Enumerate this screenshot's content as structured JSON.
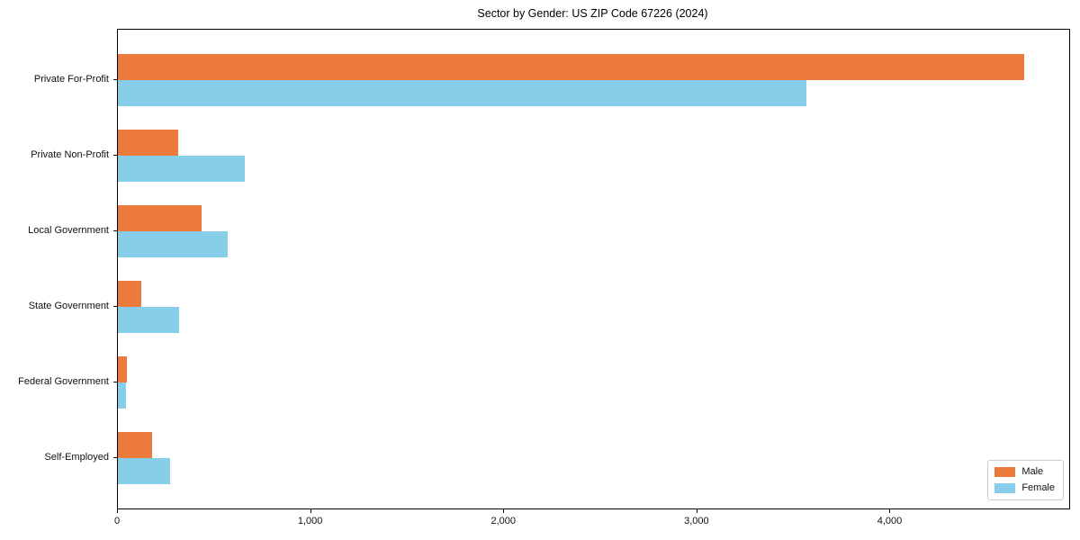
{
  "chart_data": {
    "type": "bar",
    "orientation": "horizontal",
    "title": "Sector by Gender: US ZIP Code 67226 (2024)",
    "categories": [
      "Private For-Profit",
      "Private Non-Profit",
      "Local Government",
      "State Government",
      "Federal Government",
      "Self-Employed"
    ],
    "series": [
      {
        "name": "Male",
        "color": "#EC7A3D",
        "values": [
          4690,
          310,
          435,
          120,
          47,
          175
        ]
      },
      {
        "name": "Female",
        "color": "#87CEEB",
        "values": [
          3565,
          655,
          570,
          315,
          42,
          270
        ]
      }
    ],
    "xlabel": "",
    "ylabel": "",
    "xlim": [
      0,
      4925
    ],
    "xticks": [
      0,
      1000,
      2000,
      3000,
      4000
    ],
    "xtick_labels": [
      "0",
      "1,000",
      "2,000",
      "3,000",
      "4,000"
    ],
    "grid": false,
    "legend_position": "lower right",
    "colors": {
      "axis": "#000000",
      "legend_border": "#cccccc",
      "background": "#ffffff"
    }
  }
}
